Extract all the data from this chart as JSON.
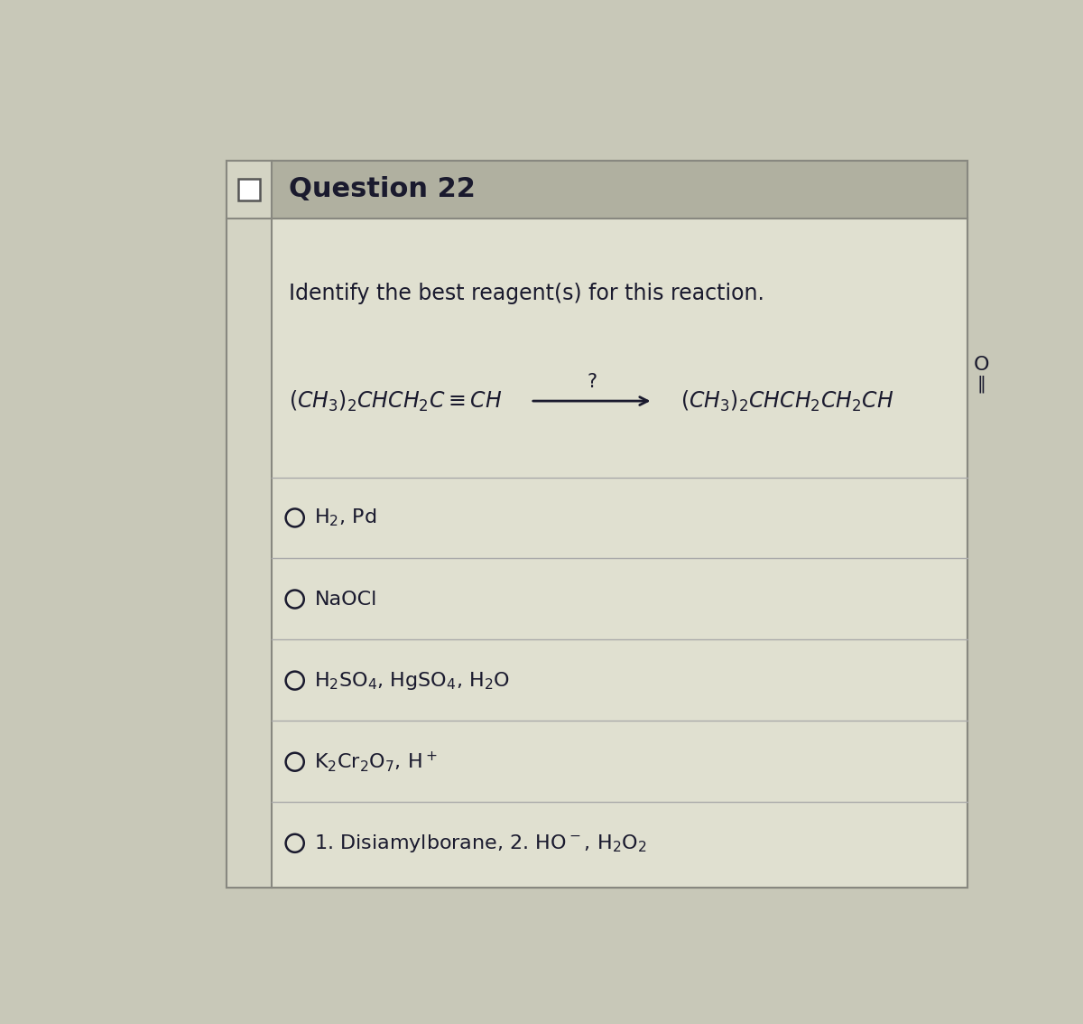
{
  "title": "Question 22",
  "instruction": "Identify the best reagent(s) for this reaction.",
  "arrow_label": "?",
  "bg_color": "#c8c8b8",
  "header_bg": "#b0b0a0",
  "content_bg": "#d4d4c4",
  "white_bg": "#e0e0d0",
  "text_color": "#1a1a2e",
  "border_color": "#888880",
  "line_color": "#aaaaaa",
  "checkbox_color": "#555555",
  "option_texts": [
    "H$_2$, Pd",
    "NaOCl",
    "H$_2$SO$_4$, HgSO$_4$, H$_2$O",
    "K$_2$Cr$_2$O$_7$, H$^+$",
    "1. Disiamylborane, 2. HO$^-$, H$_2$O$_2$"
  ]
}
